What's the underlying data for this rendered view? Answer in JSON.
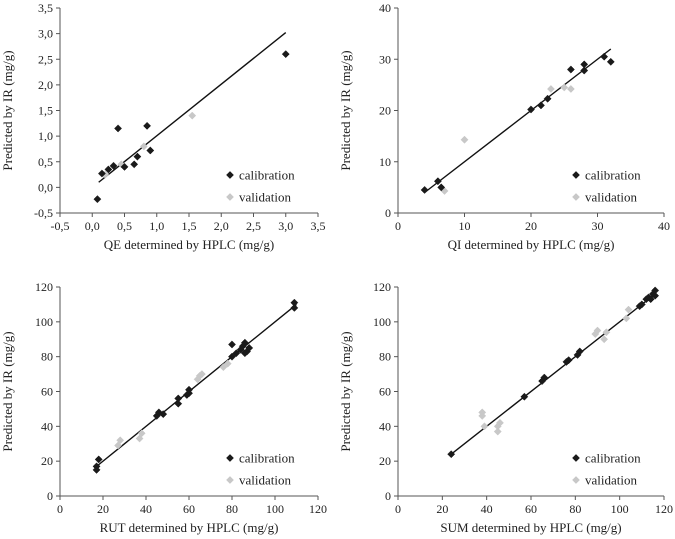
{
  "chart_data": [
    {
      "type": "scatter",
      "xlabel": "QE determined by HPLC (mg/g)",
      "ylabel": "Predicted by IR (mg/g)",
      "xlim": [
        -0.5,
        3.5
      ],
      "ylim": [
        -0.5,
        3.5
      ],
      "xticks": [
        "-0,5",
        "0,0",
        "0,5",
        "1,0",
        "1,5",
        "2,0",
        "2,5",
        "3,0",
        "3,5"
      ],
      "yticks": [
        "-0,5",
        "0,0",
        "0,5",
        "1,0",
        "1,5",
        "2,0",
        "2,5",
        "3,0",
        "3,5"
      ],
      "fit_line": [
        [
          0.1,
          0.1
        ],
        [
          3.0,
          3.02
        ]
      ],
      "legend_position": "bottom-right",
      "series": [
        {
          "name": "calibration",
          "color": "#1a1a1a",
          "points": [
            [
              0.08,
              -0.23
            ],
            [
              0.15,
              0.27
            ],
            [
              0.25,
              0.35
            ],
            [
              0.33,
              0.42
            ],
            [
              0.4,
              1.15
            ],
            [
              0.5,
              0.4
            ],
            [
              0.65,
              0.45
            ],
            [
              0.7,
              0.6
            ],
            [
              0.85,
              1.2
            ],
            [
              0.9,
              0.72
            ],
            [
              3.0,
              2.6
            ]
          ]
        },
        {
          "name": "validation",
          "color": "#c8c8c8",
          "points": [
            [
              0.2,
              0.25
            ],
            [
              0.45,
              0.45
            ],
            [
              0.8,
              0.8
            ],
            [
              1.55,
              1.4
            ]
          ]
        }
      ]
    },
    {
      "type": "scatter",
      "xlabel": "QI determined by HPLC (mg/g)",
      "ylabel": "Predicted by IR (mg/g)",
      "xlim": [
        0,
        40
      ],
      "ylim": [
        0,
        40
      ],
      "xticks": [
        "0",
        "10",
        "20",
        "30",
        "40"
      ],
      "yticks": [
        "0",
        "10",
        "20",
        "30",
        "40"
      ],
      "fit_line": [
        [
          4,
          4
        ],
        [
          32,
          32
        ]
      ],
      "legend_position": "bottom-right",
      "series": [
        {
          "name": "calibration",
          "color": "#1a1a1a",
          "points": [
            [
              4,
              4.5
            ],
            [
              6,
              6.2
            ],
            [
              6.5,
              5
            ],
            [
              20,
              20.2
            ],
            [
              21.5,
              21
            ],
            [
              22.5,
              22.3
            ],
            [
              26,
              28
            ],
            [
              28,
              27.8
            ],
            [
              28,
              29
            ],
            [
              31,
              30.5
            ],
            [
              32,
              29.5
            ]
          ]
        },
        {
          "name": "validation",
          "color": "#c8c8c8",
          "points": [
            [
              7,
              4.3
            ],
            [
              10,
              14.3
            ],
            [
              23,
              24.2
            ],
            [
              25,
              24.5
            ],
            [
              26,
              24.2
            ]
          ]
        }
      ]
    },
    {
      "type": "scatter",
      "xlabel": "RUT determined by HPLC (mg/g)",
      "ylabel": "Predicted by IR (mg/g)",
      "xlim": [
        0,
        120
      ],
      "ylim": [
        0,
        120
      ],
      "xticks": [
        "0",
        "20",
        "40",
        "60",
        "80",
        "100",
        "120"
      ],
      "yticks": [
        "0",
        "20",
        "40",
        "60",
        "80",
        "100",
        "120"
      ],
      "fit_line": [
        [
          17,
          17
        ],
        [
          110,
          110
        ]
      ],
      "legend_position": "bottom-right",
      "series": [
        {
          "name": "calibration",
          "color": "#1a1a1a",
          "points": [
            [
              17,
              15
            ],
            [
              17,
              17
            ],
            [
              18,
              21
            ],
            [
              45,
              46
            ],
            [
              46,
              48
            ],
            [
              48,
              47
            ],
            [
              55,
              53
            ],
            [
              55,
              56
            ],
            [
              59,
              58
            ],
            [
              60,
              61
            ],
            [
              60,
              59
            ],
            [
              80,
              80
            ],
            [
              80,
              87
            ],
            [
              82,
              82
            ],
            [
              84,
              84
            ],
            [
              85,
              86
            ],
            [
              86,
              82
            ],
            [
              86,
              88
            ],
            [
              87,
              83
            ],
            [
              88,
              85
            ],
            [
              109,
              108
            ],
            [
              109,
              111
            ]
          ]
        },
        {
          "name": "validation",
          "color": "#c8c8c8",
          "points": [
            [
              27,
              29
            ],
            [
              28,
              32
            ],
            [
              37,
              33
            ],
            [
              38,
              36
            ],
            [
              64,
              67
            ],
            [
              65,
              69
            ],
            [
              66,
              70
            ],
            [
              76,
              74
            ],
            [
              78,
              76
            ]
          ]
        }
      ]
    },
    {
      "type": "scatter",
      "xlabel": "SUM determined by HPLC (mg/g)",
      "ylabel": "Predicted by IR (mg/g)",
      "xlim": [
        0,
        120
      ],
      "ylim": [
        0,
        120
      ],
      "xticks": [
        "0",
        "20",
        "40",
        "60",
        "80",
        "100",
        "120"
      ],
      "yticks": [
        "0",
        "20",
        "40",
        "60",
        "80",
        "100",
        "120"
      ],
      "fit_line": [
        [
          24,
          24
        ],
        [
          116,
          116
        ]
      ],
      "legend_position": "bottom-right",
      "series": [
        {
          "name": "calibration",
          "color": "#1a1a1a",
          "points": [
            [
              24,
              24
            ],
            [
              57,
              57
            ],
            [
              65,
              66
            ],
            [
              66,
              68
            ],
            [
              76,
              77
            ],
            [
              77,
              78
            ],
            [
              81,
              81
            ],
            [
              82,
              83
            ],
            [
              109,
              109
            ],
            [
              110,
              110
            ],
            [
              112,
              113
            ],
            [
              113,
              114
            ],
            [
              114,
              113
            ],
            [
              115,
              116
            ],
            [
              116,
              118
            ],
            [
              116,
              115
            ]
          ]
        },
        {
          "name": "validation",
          "color": "#c8c8c8",
          "points": [
            [
              38,
              46
            ],
            [
              38,
              48
            ],
            [
              39,
              40
            ],
            [
              45,
              37
            ],
            [
              45,
              40
            ],
            [
              46,
              42
            ],
            [
              89,
              93
            ],
            [
              90,
              95
            ],
            [
              93,
              90
            ],
            [
              94,
              94
            ],
            [
              103,
              102
            ],
            [
              104,
              107
            ]
          ]
        }
      ]
    }
  ]
}
